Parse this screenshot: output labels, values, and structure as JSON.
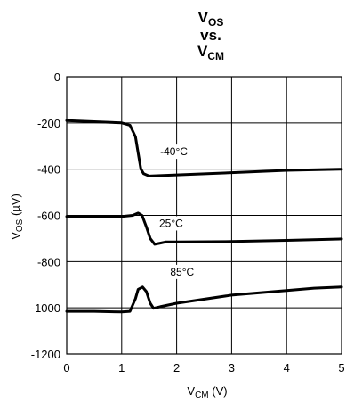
{
  "chart_data": {
    "type": "line",
    "title": {
      "line1": {
        "main": "V",
        "sub": "OS"
      },
      "line2": "vs.",
      "line3": {
        "main": "V",
        "sub": "CM"
      }
    },
    "xlabel": {
      "main": "V",
      "sub": "CM",
      "suffix": " (V)"
    },
    "ylabel": {
      "main": "V",
      "sub": "OS",
      "suffix": " (µV)"
    },
    "xlim": [
      0,
      5
    ],
    "ylim": [
      -1200,
      0
    ],
    "x_ticks": [
      "0",
      "1",
      "2",
      "3",
      "4",
      "5"
    ],
    "y_ticks": [
      "0",
      "-200",
      "-400",
      "-600",
      "-800",
      "-1000",
      "-1200"
    ],
    "grid": true,
    "series": [
      {
        "name": "-40°C",
        "x": [
          0,
          0.5,
          1.0,
          1.15,
          1.25,
          1.3,
          1.35,
          1.4,
          1.5,
          1.7,
          2.0,
          3.0,
          4.0,
          5.0
        ],
        "y": [
          -190,
          -195,
          -200,
          -210,
          -260,
          -330,
          -400,
          -420,
          -430,
          -428,
          -425,
          -415,
          -405,
          -400
        ]
      },
      {
        "name": "25°C",
        "x": [
          0,
          0.5,
          1.0,
          1.2,
          1.3,
          1.37,
          1.45,
          1.52,
          1.6,
          1.7,
          1.8,
          2.0,
          3.0,
          4.0,
          5.0
        ],
        "y": [
          -605,
          -605,
          -605,
          -600,
          -590,
          -600,
          -650,
          -700,
          -725,
          -720,
          -715,
          -715,
          -713,
          -708,
          -702
        ]
      },
      {
        "name": "85°C",
        "x": [
          0,
          0.5,
          1.0,
          1.15,
          1.25,
          1.3,
          1.38,
          1.45,
          1.52,
          1.58,
          1.7,
          2.0,
          3.0,
          4.0,
          4.5,
          5.0
        ],
        "y": [
          -1015,
          -1015,
          -1018,
          -1015,
          -960,
          -920,
          -910,
          -930,
          -980,
          -1002,
          -995,
          -980,
          -945,
          -925,
          -915,
          -910
        ]
      }
    ],
    "annotations": [
      {
        "text": "-40°C",
        "x": 1.95,
        "y": -340
      },
      {
        "text": "25°C",
        "x": 1.9,
        "y": -650
      },
      {
        "text": "85°C",
        "x": 2.1,
        "y": -860
      }
    ]
  }
}
